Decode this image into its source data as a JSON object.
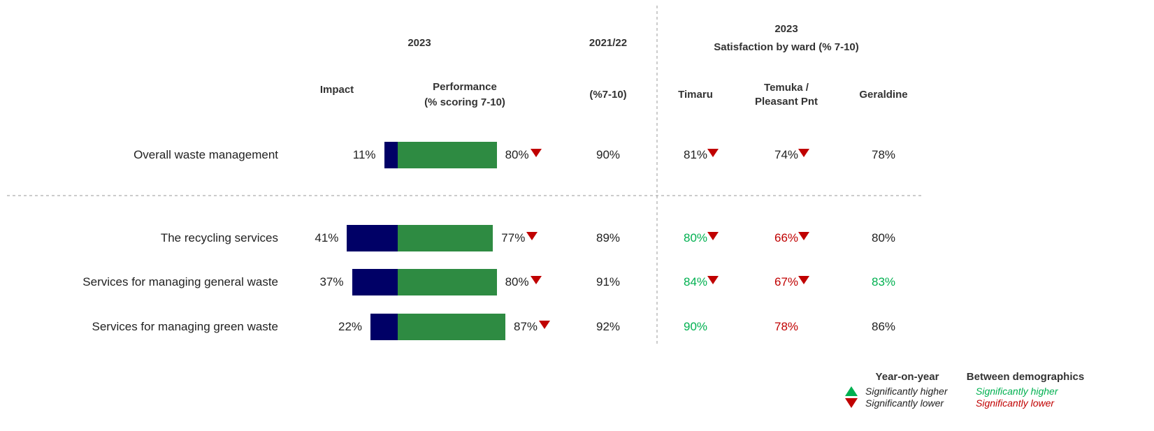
{
  "chart_data": {
    "type": "bar",
    "headers": {
      "year": "2023",
      "impact": "Impact",
      "performance": [
        "Performance",
        "(% scoring 7-10)"
      ],
      "prior_year": "2021/22",
      "prior_sub": "(%7-10)",
      "ward_year": "2023",
      "ward_title": "Satisfaction by ward (% 7-10)"
    },
    "categories": [
      "Overall waste management",
      "The recycling services",
      "Services for managing general waste",
      "Services for managing green waste"
    ],
    "series": [
      {
        "name": "Impact",
        "color": "#000066",
        "values": [
          11,
          41,
          37,
          22
        ],
        "value_labels": [
          "11%",
          "41%",
          "37%",
          "22%"
        ]
      },
      {
        "name": "Performance",
        "color": "#2e8b42",
        "values": [
          80,
          77,
          80,
          87
        ],
        "value_labels": [
          "80%",
          "77%",
          "80%",
          "87%"
        ],
        "trend": [
          "lower",
          "lower",
          "lower",
          "lower"
        ]
      }
    ],
    "prior": {
      "values": [
        90,
        89,
        91,
        92
      ],
      "value_labels": [
        "90%",
        "89%",
        "91%",
        "92%"
      ]
    },
    "wards": [
      {
        "name": "Timaru",
        "values": [
          81,
          80,
          84,
          90
        ],
        "value_labels": [
          "81%",
          "80%",
          "84%",
          "90%"
        ],
        "colors": [
          "#222222",
          "#00b050",
          "#00b050",
          "#00b050"
        ],
        "trend": [
          "lower",
          "lower",
          "lower",
          null
        ]
      },
      {
        "name": "Temuka / Pleasant Pnt",
        "values": [
          74,
          66,
          67,
          78
        ],
        "value_labels": [
          "74%",
          "66%",
          "67%",
          "78%"
        ],
        "colors": [
          "#222222",
          "#c00000",
          "#c00000",
          "#c00000"
        ],
        "trend": [
          "lower",
          "lower",
          "lower",
          null
        ]
      },
      {
        "name": "Geraldine",
        "values": [
          78,
          80,
          83,
          86
        ],
        "value_labels": [
          "78%",
          "80%",
          "83%",
          "86%"
        ],
        "colors": [
          "#222222",
          "#222222",
          "#00b050",
          "#222222"
        ],
        "trend": [
          null,
          null,
          null,
          null
        ]
      }
    ],
    "legend": {
      "year_on_year": {
        "title": "Year-on-year",
        "higher": {
          "label": "Significantly higher",
          "color": "#00b050"
        },
        "lower": {
          "label": "Significantly lower",
          "color": "#c00000"
        }
      },
      "between_demographics": {
        "title": "Between demographics",
        "higher": {
          "label": "Significantly higher",
          "color": "#00b050"
        },
        "lower": {
          "label": "Significantly lower",
          "color": "#c00000"
        }
      }
    }
  }
}
